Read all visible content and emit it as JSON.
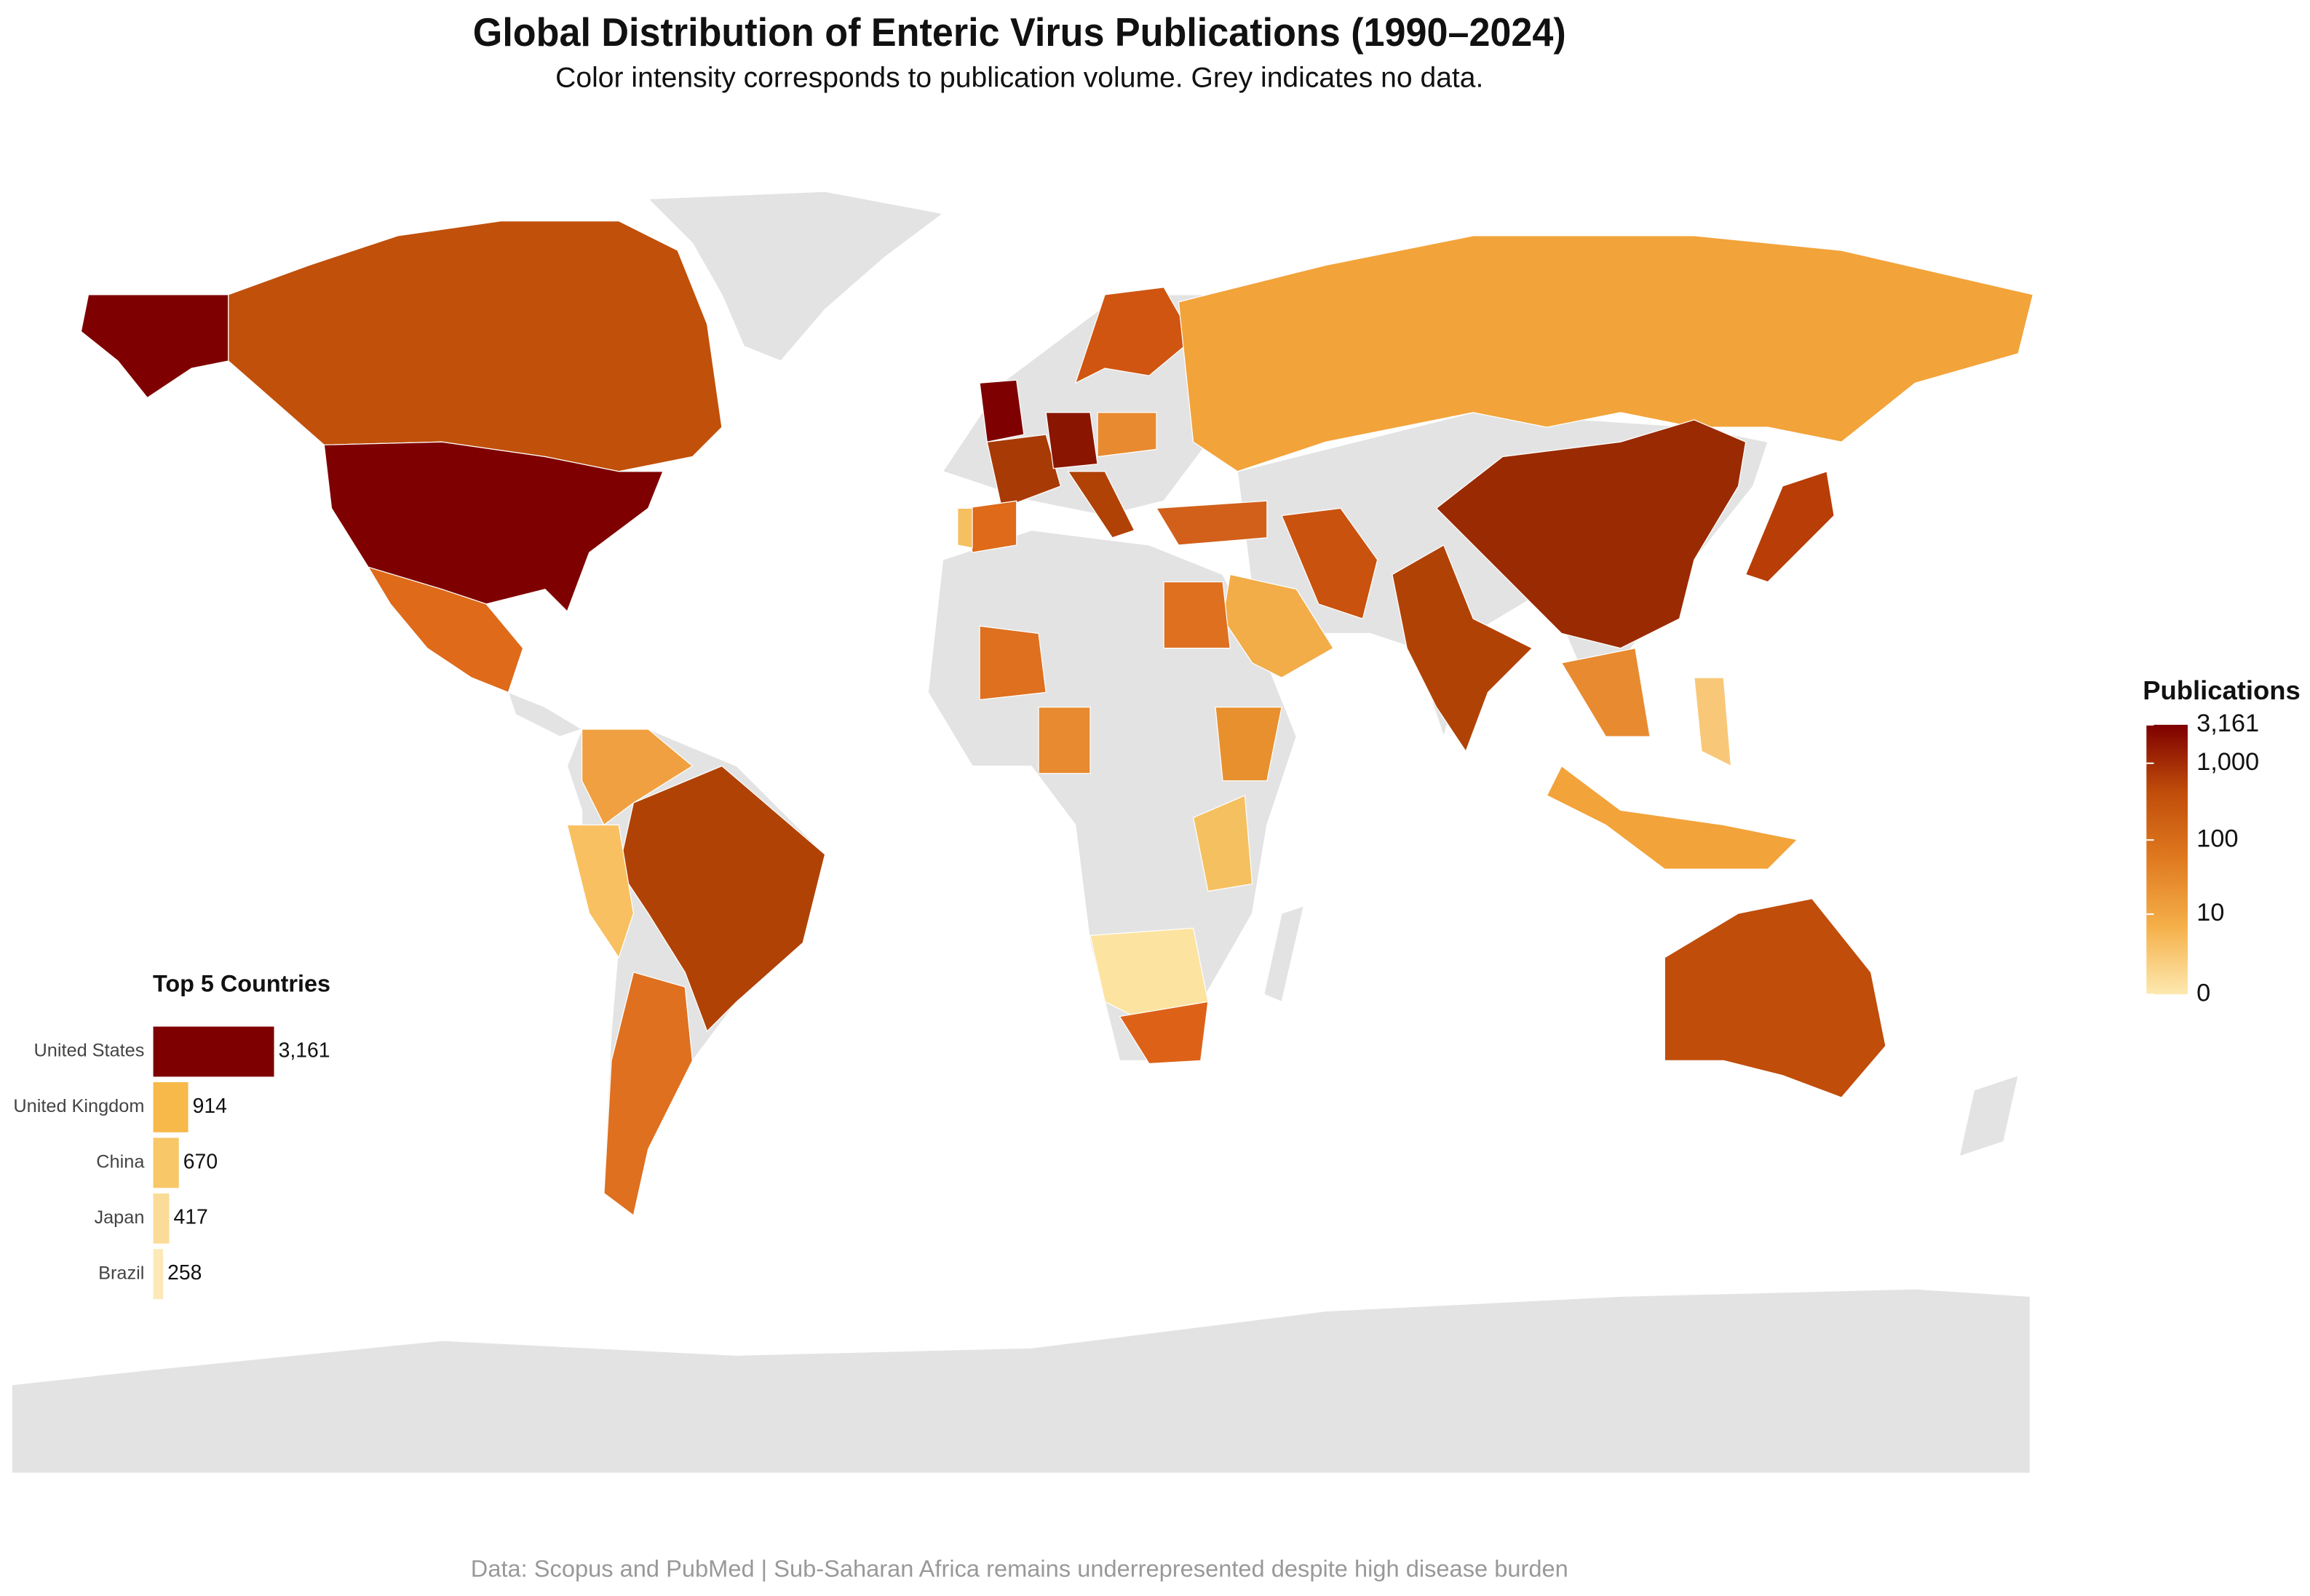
{
  "chart_data": [
    {
      "type": "choropleth",
      "title": "Global Distribution of Enteric Virus Publications (1990–2024)",
      "subtitle": "Color intensity corresponds to publication volume. Grey indicates no data.",
      "caption": "Data: Scopus and PubMed | Sub-Saharan Africa remains underrepresented despite high disease burden",
      "legend_title": "Publications",
      "color_scale": "log1p",
      "colorlim": [
        0,
        3161
      ],
      "colorticks": [
        0,
        10,
        100,
        {
          "value": 1000,
          "label": "1,000"
        },
        {
          "value": 3161,
          "label": "3,161"
        }
      ],
      "colors": [
        "#fde9b0",
        "#f5b04a",
        "#e07a20",
        "#c04d0a",
        "#7f0000"
      ]
    },
    {
      "type": "bar",
      "title": "Top 5 Countries",
      "orientation": "horizontal",
      "categories": [
        "United States",
        "United Kingdom",
        "China",
        "Japan",
        "Brazil"
      ],
      "values": [
        3161,
        914,
        670,
        417,
        258
      ],
      "value_labels": [
        "3,161",
        "914",
        "670",
        "417",
        "258"
      ],
      "colors": [
        "#7f0000",
        "#f6b94a",
        "#f8c768",
        "#fbdb98",
        "#fde9b8"
      ],
      "xlim": [
        0,
        3161
      ]
    }
  ]
}
